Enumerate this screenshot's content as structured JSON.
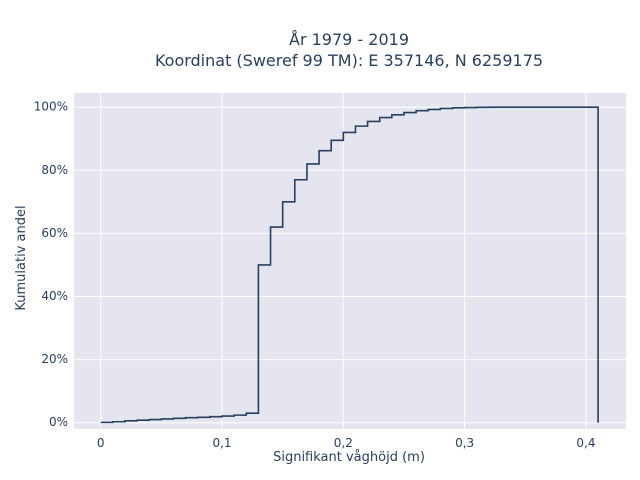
{
  "chart_data": {
    "type": "line",
    "line_shape": "step",
    "title": "År 1979 - 2019",
    "subtitle": "Koordinat (Sweref 99 TM): E 357146, N 6259175",
    "xlabel": "Signifikant våghöjd (m)",
    "ylabel": "Kumulativ andel",
    "xlim": [
      -0.022,
      0.433
    ],
    "ylim": [
      -0.02,
      1.045
    ],
    "grid": true,
    "x_ticks": [
      0,
      0.1,
      0.2,
      0.3,
      0.4
    ],
    "x_tick_labels": [
      "0",
      "0,1",
      "0,2",
      "0,3",
      "0,4"
    ],
    "y_ticks": [
      0,
      0.2,
      0.4,
      0.6,
      0.8,
      1.0
    ],
    "y_tick_labels": [
      "0%",
      "20%",
      "40%",
      "60%",
      "80%",
      "100%"
    ],
    "series": [
      {
        "name": "",
        "color": "#2a3f5f",
        "x": [
          0,
          0.01,
          0.02,
          0.03,
          0.04,
          0.05,
          0.06,
          0.07,
          0.08,
          0.09,
          0.1,
          0.11,
          0.12,
          0.13,
          0.14,
          0.15,
          0.16,
          0.17,
          0.18,
          0.19,
          0.2,
          0.21,
          0.22,
          0.23,
          0.24,
          0.25,
          0.26,
          0.27,
          0.28,
          0.29,
          0.3,
          0.31,
          0.32,
          0.33,
          0.34,
          0.35,
          0.36,
          0.37,
          0.38,
          0.39,
          0.4,
          0.41
        ],
        "y": [
          0.001,
          0.003,
          0.006,
          0.008,
          0.01,
          0.012,
          0.014,
          0.016,
          0.017,
          0.019,
          0.021,
          0.024,
          0.03,
          0.5,
          0.62,
          0.7,
          0.77,
          0.82,
          0.862,
          0.895,
          0.92,
          0.94,
          0.955,
          0.967,
          0.976,
          0.983,
          0.989,
          0.993,
          0.996,
          0.998,
          0.999,
          0.9995,
          1.0,
          1.0,
          1.0,
          1.0,
          1.0,
          1.0,
          1.0,
          1.0,
          1.0,
          1.0
        ],
        "final_drop_to": 0
      }
    ]
  }
}
